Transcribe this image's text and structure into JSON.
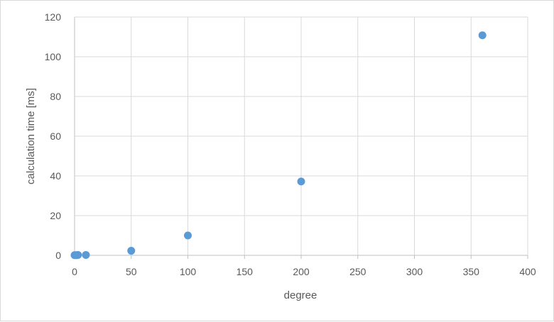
{
  "chart_data": {
    "type": "scatter",
    "title": "",
    "xlabel": "degree",
    "ylabel": "calculation time [ms]",
    "xlim": [
      0,
      400
    ],
    "ylim": [
      0,
      120
    ],
    "x_ticks": [
      "0",
      "50",
      "100",
      "150",
      "200",
      "250",
      "300",
      "350",
      "400"
    ],
    "y_ticks": [
      "0",
      "20",
      "40",
      "60",
      "80",
      "100",
      "120"
    ],
    "grid": true,
    "legend": "none",
    "marker_color": "#5B9BD5",
    "points": [
      {
        "x": 0,
        "y": 0.1
      },
      {
        "x": 1,
        "y": 0.1
      },
      {
        "x": 2,
        "y": 0.1
      },
      {
        "x": 3,
        "y": 0.2
      },
      {
        "x": 10,
        "y": 0.2
      },
      {
        "x": 50,
        "y": 2.3
      },
      {
        "x": 100,
        "y": 10.0
      },
      {
        "x": 200,
        "y": 37.2
      },
      {
        "x": 360,
        "y": 110.8
      }
    ]
  }
}
